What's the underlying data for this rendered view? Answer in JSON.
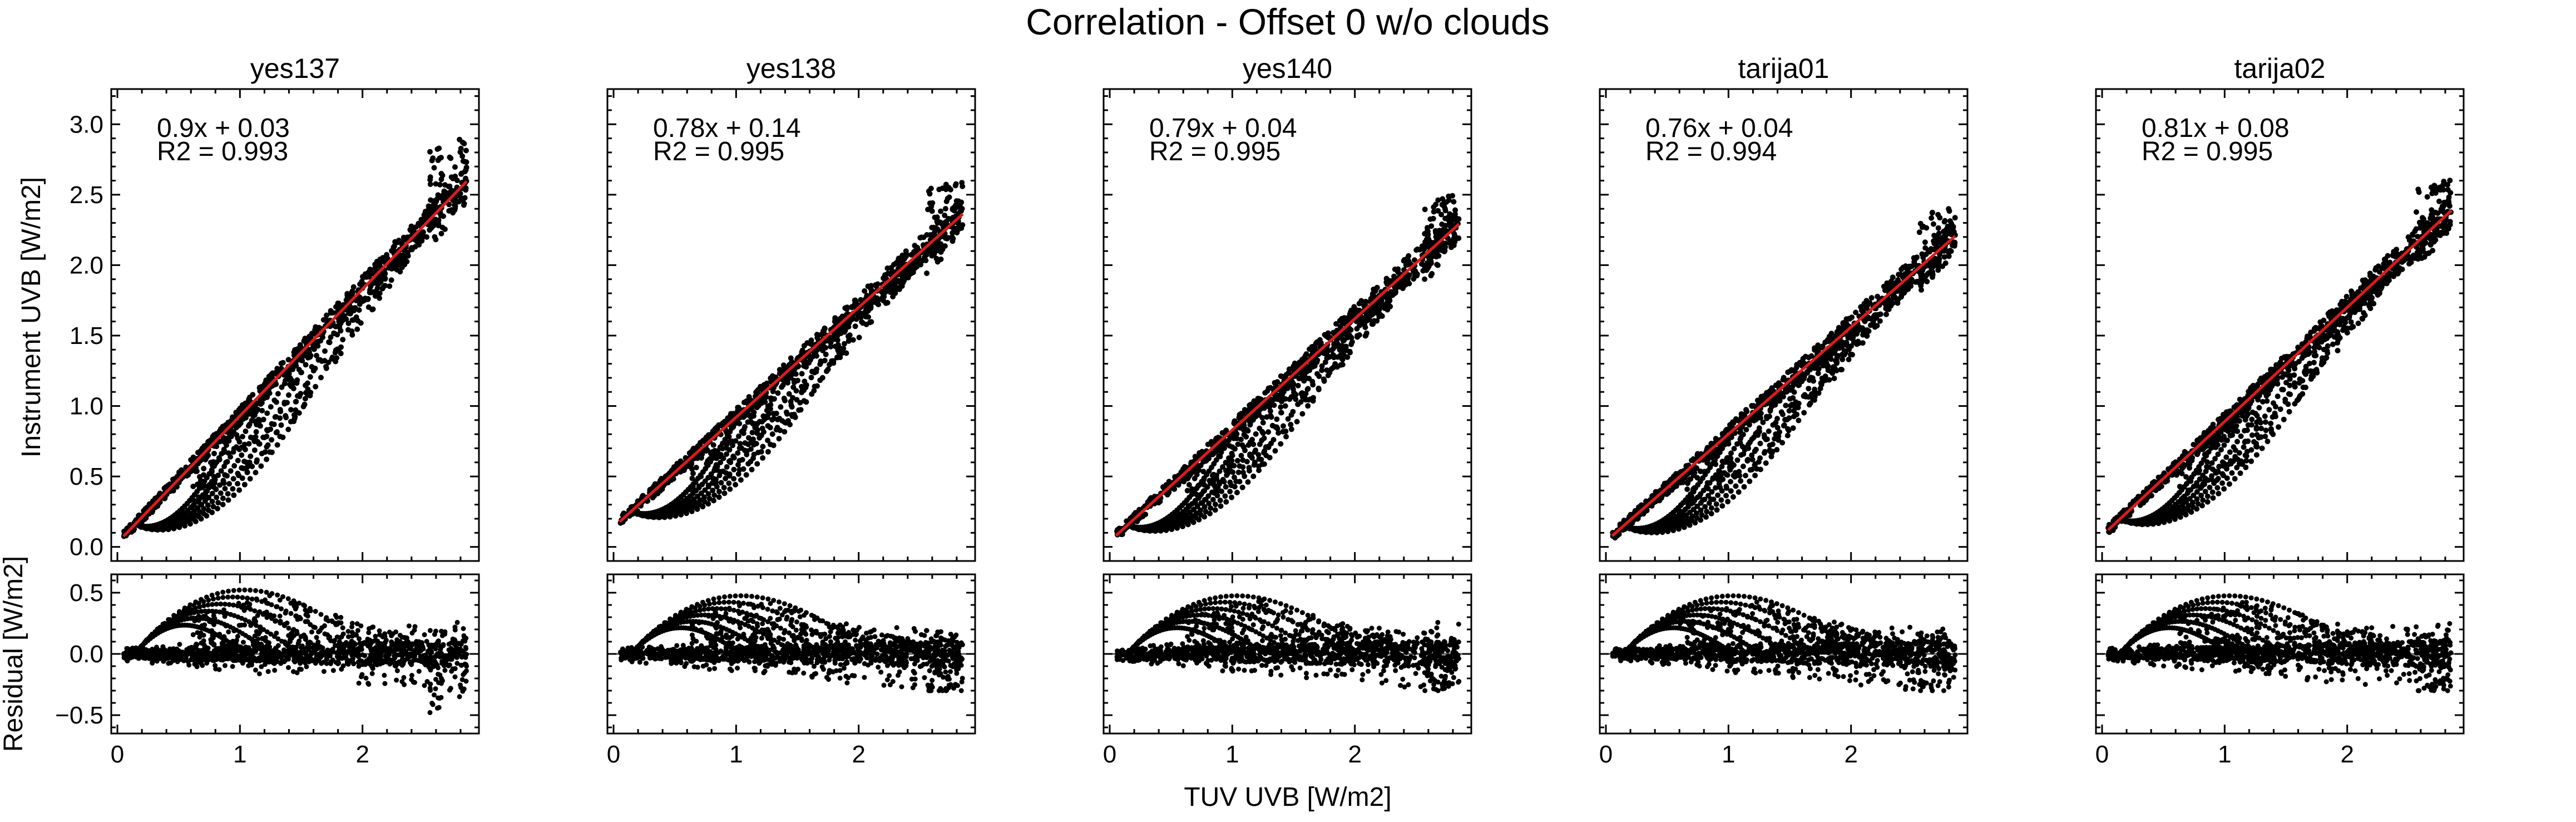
{
  "figure": {
    "suptitle": "Correlation - Offset 0 w/o clouds",
    "xlabel": "TUV UVB [W/m2]",
    "ylabel_top": "Instrument UVB [W/m2]",
    "ylabel_bottom": "Residual [W/m2]",
    "point_color": "#000000",
    "fit_color": "#e01b1b",
    "zero_line_color": "#555555"
  },
  "chart_data": [
    {
      "type": "scatter",
      "title": "yes137",
      "xlim": [
        -0.05,
        2.95
      ],
      "ylim": [
        -0.1,
        3.25
      ],
      "xticks": [
        "0",
        "1",
        "2"
      ],
      "yticks": [
        "0.0",
        "0.5",
        "1.0",
        "1.5",
        "2.0",
        "2.5",
        "3.0"
      ],
      "fit": {
        "slope": 0.9,
        "intercept": 0.03,
        "equation": "0.9x + 0.03",
        "r2_label": "R2 = 0.993"
      },
      "x_range": [
        0.05,
        2.85
      ],
      "max_observed_y": 3.05,
      "residual_ylim": [
        -0.65,
        0.65
      ],
      "residual_yticks": [
        "−0.5",
        "0.0",
        "0.5"
      ],
      "residual_max": 0.6,
      "residual_min": -0.5
    },
    {
      "type": "scatter",
      "title": "yes138",
      "xlim": [
        -0.05,
        2.95
      ],
      "ylim": [
        -0.1,
        3.25
      ],
      "xticks": [
        "0",
        "1",
        "2"
      ],
      "fit": {
        "slope": 0.78,
        "intercept": 0.14,
        "equation": "0.78x + 0.14",
        "r2_label": "R2 = 0.995"
      },
      "x_range": [
        0.05,
        2.85
      ],
      "max_observed_y": 2.7,
      "residual_ylim": [
        -0.65,
        0.65
      ],
      "residual_max": 0.55,
      "residual_min": -0.3
    },
    {
      "type": "scatter",
      "title": "yes140",
      "xlim": [
        -0.05,
        2.95
      ],
      "ylim": [
        -0.1,
        3.25
      ],
      "xticks": [
        "0",
        "1",
        "2"
      ],
      "fit": {
        "slope": 0.79,
        "intercept": 0.04,
        "equation": "0.79x + 0.04",
        "r2_label": "R2 = 0.995"
      },
      "x_range": [
        0.05,
        2.85
      ],
      "max_observed_y": 2.6,
      "residual_ylim": [
        -0.65,
        0.65
      ],
      "residual_max": 0.55,
      "residual_min": -0.3
    },
    {
      "type": "scatter",
      "title": "tarija01",
      "xlim": [
        -0.05,
        2.95
      ],
      "ylim": [
        -0.1,
        3.25
      ],
      "xticks": [
        "0",
        "1",
        "2"
      ],
      "fit": {
        "slope": 0.76,
        "intercept": 0.04,
        "equation": "0.76x + 0.04",
        "r2_label": "R2 = 0.994"
      },
      "x_range": [
        0.05,
        2.85
      ],
      "max_observed_y": 2.5,
      "residual_ylim": [
        -0.65,
        0.65
      ],
      "residual_max": 0.55,
      "residual_min": -0.3
    },
    {
      "type": "scatter",
      "title": "tarija02",
      "xlim": [
        -0.05,
        2.95
      ],
      "ylim": [
        -0.1,
        3.25
      ],
      "xticks": [
        "0",
        "1",
        "2"
      ],
      "fit": {
        "slope": 0.81,
        "intercept": 0.08,
        "equation": "0.81x + 0.08",
        "r2_label": "R2 = 0.995"
      },
      "x_range": [
        0.05,
        2.85
      ],
      "max_observed_y": 2.7,
      "residual_ylim": [
        -0.65,
        0.65
      ],
      "residual_max": 0.55,
      "residual_min": -0.3
    }
  ]
}
